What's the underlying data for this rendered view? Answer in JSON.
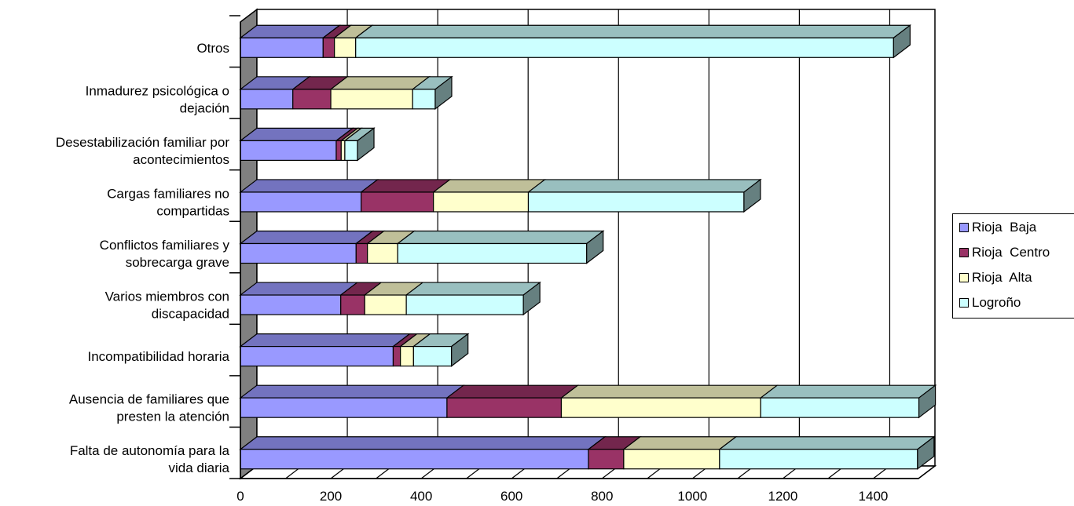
{
  "chart_data": {
    "type": "bar",
    "orientation": "horizontal",
    "stacked": true,
    "three_d": true,
    "categories": [
      "Otros",
      "Inmadurez psicológica o dejación",
      "Desestabilización familiar por acontecimientos",
      "Cargas familiares no compartidas",
      "Conflictos familiares y sobrecarga grave",
      "Varios miembros con discapacidad",
      "Incompatibilidad horaria",
      "Ausencia de familiares que presten la atención",
      "Falta de autonomía para la vida diaria"
    ],
    "category_lines": [
      [
        "Otros"
      ],
      [
        "Inmadurez psicológica o",
        "dejación"
      ],
      [
        "Desestabilización familiar por",
        "acontecimientos"
      ],
      [
        "Cargas familiares no",
        "compartidas"
      ],
      [
        "Conflictos familiares y",
        "sobrecarga grave"
      ],
      [
        "Varios miembros con",
        "discapacidad"
      ],
      [
        "Incompatibilidad horaria"
      ],
      [
        "Ausencia de familiares que",
        "presten la atención"
      ],
      [
        "Falta de autonomía para la",
        "vida diaria"
      ]
    ],
    "series": [
      {
        "name": "Rioja  Baja",
        "color": "#9999ff",
        "values": [
          183,
          116,
          212,
          267,
          256,
          222,
          338,
          457,
          770
        ]
      },
      {
        "name": "Rioja  Centro",
        "color": "#993366",
        "values": [
          25,
          84,
          11,
          160,
          25,
          53,
          16,
          253,
          78
        ]
      },
      {
        "name": "Rioja  Alta",
        "color": "#ffffcc",
        "values": [
          47,
          181,
          8,
          210,
          67,
          92,
          29,
          441,
          212
        ]
      },
      {
        "name": "Logroño",
        "color": "#ccffff",
        "values": [
          1190,
          50,
          28,
          477,
          418,
          259,
          84,
          350,
          438
        ]
      }
    ],
    "xlim": [
      0,
      1500
    ],
    "xticks": [
      "0",
      "200",
      "400",
      "600",
      "800",
      "1000",
      "1200",
      "1400"
    ],
    "xtick_values": [
      0,
      200,
      400,
      600,
      800,
      1000,
      1200,
      1400
    ],
    "grid": true,
    "legend_position": "right",
    "title": "",
    "xlabel": "",
    "ylabel": ""
  }
}
